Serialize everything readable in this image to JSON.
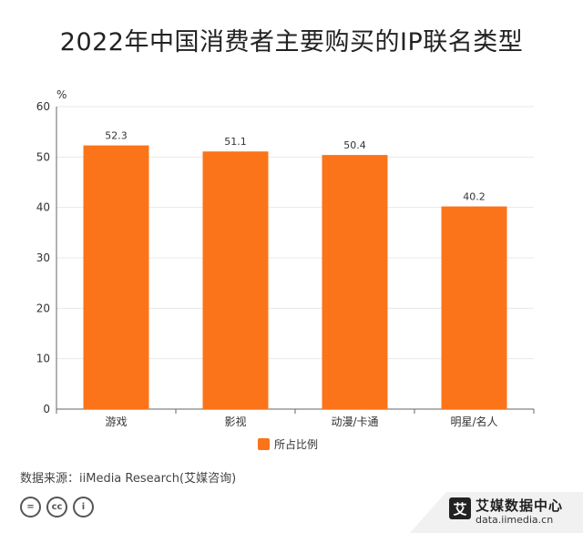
{
  "title": "2022年中国消费者主要购买的IP联名类型",
  "source": "数据来源：iiMedia Research(艾媒咨询)",
  "brand": {
    "name": "艾媒数据中心",
    "url": "data.iimedia.cn",
    "logo_char": "艾"
  },
  "cc_icons": [
    "equals-icon",
    "cc-icon",
    "person-icon"
  ],
  "colors": {
    "bar": "#fb7419",
    "axis": "#666666",
    "grid": "#e8e8e8"
  },
  "chart_data": {
    "type": "bar",
    "categories": [
      "游戏",
      "影视",
      "动漫/卡通",
      "明星/名人"
    ],
    "series": [
      {
        "name": "所占比例",
        "values": [
          52.3,
          51.1,
          50.4,
          40.2
        ]
      }
    ],
    "data_labels": [
      "52.3",
      "51.1",
      "50.4",
      "40.2"
    ],
    "title": "",
    "xlabel": "",
    "ylabel": "%",
    "ylim": [
      0,
      60
    ],
    "yticks": [
      "0",
      "10",
      "20",
      "30",
      "40",
      "50",
      "60"
    ],
    "grid": true,
    "legend": "bottom-center"
  }
}
